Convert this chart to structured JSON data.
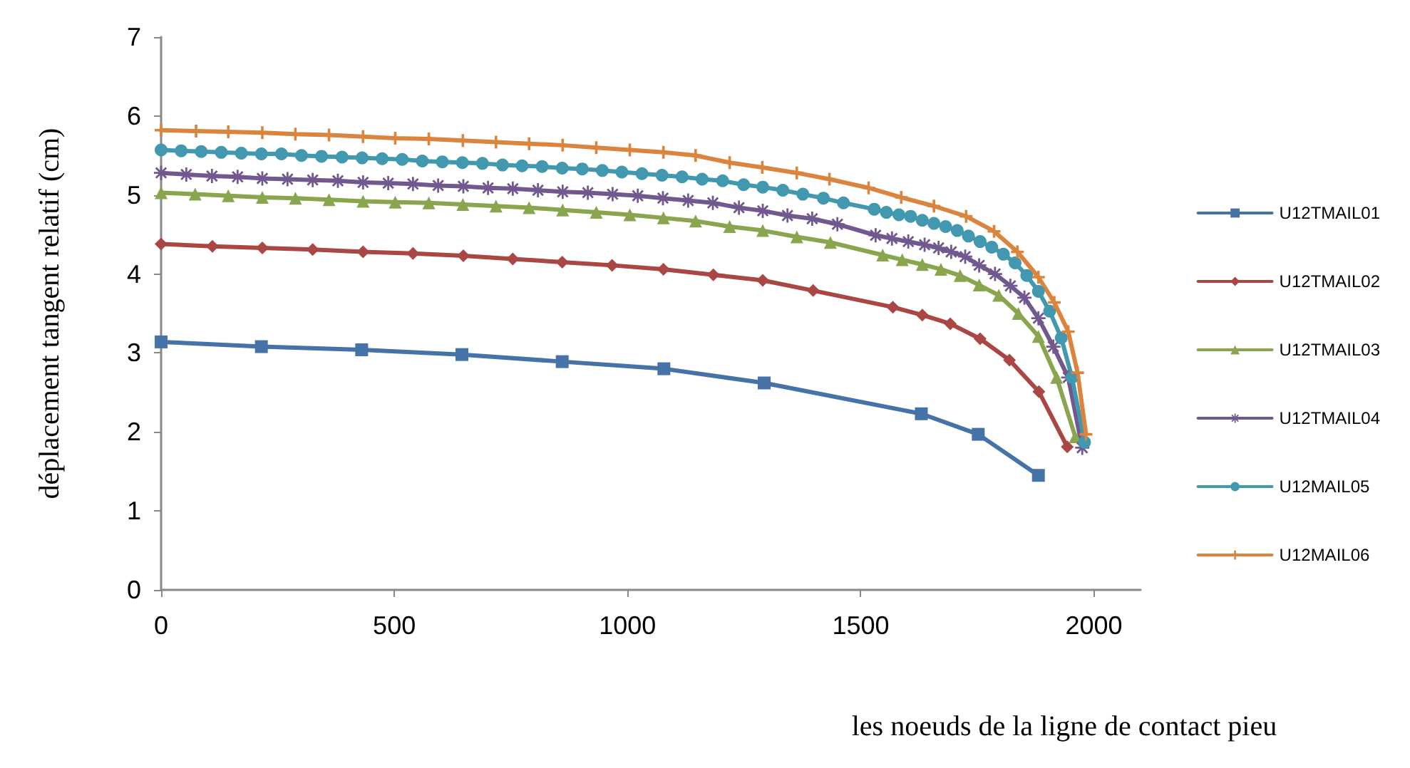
{
  "chart_data": {
    "type": "line",
    "xlabel": "les noeuds de la ligne de contact pieu",
    "ylabel": "déplacement tangent relatif (cm)",
    "xlim": [
      0,
      2100
    ],
    "xticks": [
      0,
      500,
      1000,
      1500,
      2000
    ],
    "ylim": [
      0,
      7
    ],
    "yticks": [
      0,
      1,
      2,
      3,
      4,
      5,
      6,
      7
    ],
    "grid": false,
    "legend": "right",
    "line_style": "solid",
    "series": [
      {
        "name": "U12TMAIL01",
        "color": "#4572a7",
        "marker": "square",
        "x": [
          0,
          215,
          430,
          645,
          860,
          1078,
          1293,
          1630,
          1752,
          1881
        ],
        "values": [
          3.14,
          3.08,
          3.04,
          2.98,
          2.89,
          2.8,
          2.62,
          2.23,
          1.97,
          1.45
        ]
      },
      {
        "name": "U12TMAIL02",
        "color": "#aa4643",
        "marker": "diamond",
        "x": [
          0,
          110,
          217,
          325,
          433,
          540,
          648,
          754,
          860,
          967,
          1077,
          1184,
          1290,
          1398,
          1569,
          1632,
          1692,
          1756,
          1819,
          1882,
          1943
        ],
        "values": [
          4.38,
          4.35,
          4.33,
          4.31,
          4.28,
          4.26,
          4.23,
          4.19,
          4.15,
          4.11,
          4.06,
          3.99,
          3.92,
          3.79,
          3.58,
          3.48,
          3.37,
          3.18,
          2.91,
          2.51,
          1.81
        ]
      },
      {
        "name": "U12TMAIL03",
        "color": "#89a54e",
        "marker": "triangle",
        "x": [
          0,
          73,
          144,
          217,
          288,
          360,
          433,
          502,
          574,
          647,
          718,
          789,
          861,
          933,
          1005,
          1077,
          1146,
          1219,
          1290,
          1363,
          1435,
          1547,
          1589,
          1632,
          1672,
          1713,
          1754,
          1796,
          1838,
          1881,
          1920,
          1960
        ],
        "values": [
          5.03,
          5.01,
          4.99,
          4.97,
          4.96,
          4.94,
          4.92,
          4.91,
          4.9,
          4.88,
          4.86,
          4.84,
          4.81,
          4.78,
          4.75,
          4.71,
          4.67,
          4.6,
          4.55,
          4.47,
          4.4,
          4.24,
          4.18,
          4.12,
          4.06,
          3.98,
          3.86,
          3.73,
          3.5,
          3.21,
          2.69,
          1.94
        ]
      },
      {
        "name": "U12TMAIL04",
        "color": "#71588f",
        "marker": "star",
        "x": [
          0,
          54,
          109,
          164,
          217,
          271,
          325,
          379,
          433,
          487,
          540,
          594,
          648,
          701,
          754,
          808,
          861,
          915,
          968,
          1022,
          1076,
          1130,
          1183,
          1239,
          1290,
          1343,
          1396,
          1450,
          1532,
          1567,
          1602,
          1637,
          1667,
          1694,
          1724,
          1754,
          1788,
          1821,
          1851,
          1881,
          1913,
          1945,
          1975
        ],
        "values": [
          5.28,
          5.26,
          5.24,
          5.23,
          5.21,
          5.2,
          5.19,
          5.18,
          5.16,
          5.15,
          5.14,
          5.12,
          5.11,
          5.09,
          5.08,
          5.06,
          5.04,
          5.03,
          5.01,
          4.99,
          4.96,
          4.93,
          4.9,
          4.84,
          4.8,
          4.74,
          4.7,
          4.63,
          4.49,
          4.45,
          4.41,
          4.37,
          4.33,
          4.28,
          4.22,
          4.11,
          4.0,
          3.85,
          3.7,
          3.44,
          3.08,
          2.69,
          1.8
        ]
      },
      {
        "name": "U12MAIL05",
        "color": "#4198af",
        "marker": "circle",
        "x": [
          0,
          43,
          86,
          129,
          172,
          215,
          258,
          301,
          344,
          388,
          431,
          474,
          517,
          560,
          603,
          646,
          689,
          732,
          774,
          817,
          860,
          903,
          946,
          988,
          1031,
          1074,
          1117,
          1160,
          1204,
          1249,
          1290,
          1333,
          1376,
          1420,
          1463,
          1529,
          1555,
          1582,
          1607,
          1632,
          1657,
          1682,
          1707,
          1731,
          1756,
          1781,
          1806,
          1831,
          1856,
          1881,
          1905,
          1930,
          1953,
          1980
        ],
        "values": [
          5.57,
          5.56,
          5.55,
          5.54,
          5.53,
          5.52,
          5.52,
          5.5,
          5.49,
          5.48,
          5.47,
          5.46,
          5.45,
          5.43,
          5.42,
          5.41,
          5.4,
          5.38,
          5.37,
          5.36,
          5.34,
          5.33,
          5.31,
          5.29,
          5.27,
          5.25,
          5.23,
          5.2,
          5.18,
          5.13,
          5.1,
          5.06,
          5.01,
          4.96,
          4.9,
          4.82,
          4.78,
          4.75,
          4.73,
          4.68,
          4.64,
          4.6,
          4.55,
          4.48,
          4.41,
          4.34,
          4.25,
          4.14,
          3.98,
          3.78,
          3.53,
          3.19,
          2.69,
          1.87
        ]
      },
      {
        "name": "U12MAIL06",
        "color": "#db843d",
        "marker": "cross",
        "x": [
          0,
          75,
          144,
          217,
          288,
          360,
          433,
          502,
          574,
          647,
          718,
          789,
          861,
          933,
          1005,
          1077,
          1146,
          1219,
          1289,
          1363,
          1433,
          1517,
          1587,
          1657,
          1726,
          1786,
          1836,
          1881,
          1915,
          1945,
          1965,
          1983
        ],
        "values": [
          5.82,
          5.81,
          5.8,
          5.79,
          5.77,
          5.76,
          5.74,
          5.72,
          5.71,
          5.69,
          5.67,
          5.65,
          5.63,
          5.6,
          5.57,
          5.54,
          5.5,
          5.41,
          5.35,
          5.28,
          5.2,
          5.09,
          4.97,
          4.86,
          4.73,
          4.54,
          4.28,
          3.96,
          3.64,
          3.27,
          2.75,
          1.97
        ]
      }
    ]
  }
}
